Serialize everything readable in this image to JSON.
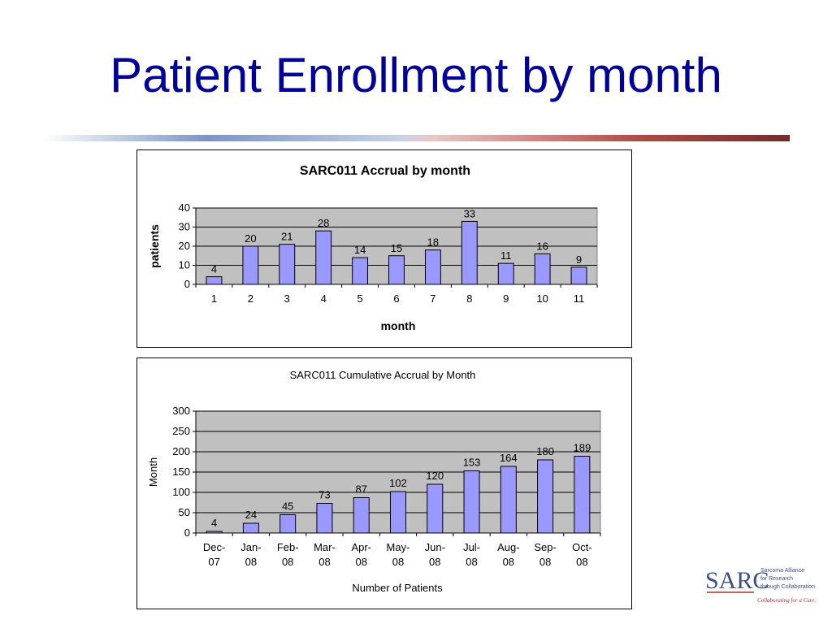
{
  "slide": {
    "title": "Patient Enrollment by month"
  },
  "colors": {
    "title": "#000099",
    "bar_fill": "#9999FF",
    "plot_bg": "#C0C0C0",
    "rule_blue": "#3A5D9B",
    "rule_red": "#A83A35"
  },
  "logo": {
    "name": "SARC",
    "tagline_1": "Sarcoma Alliance",
    "tagline_2": "for Research",
    "tagline_3": "through Collaboration",
    "slogan": "Collaborating for a Cure."
  },
  "chart_data": [
    {
      "type": "bar",
      "title": "SARC011 Accrual by month",
      "xlabel": "month",
      "ylabel": "patients",
      "categories": [
        "1",
        "2",
        "3",
        "4",
        "5",
        "6",
        "7",
        "8",
        "9",
        "10",
        "11"
      ],
      "values": [
        4,
        20,
        21,
        28,
        14,
        15,
        18,
        33,
        11,
        16,
        9
      ],
      "ylim": [
        0,
        40
      ],
      "yticks": [
        0,
        10,
        20,
        30,
        40
      ],
      "grid": true,
      "data_labels": true
    },
    {
      "type": "bar",
      "title": "SARC011 Cumulative Accrual by Month",
      "xlabel": "Number of Patients",
      "ylabel": "Month",
      "categories": [
        [
          "Dec-",
          "07"
        ],
        [
          "Jan-",
          "08"
        ],
        [
          "Feb-",
          "08"
        ],
        [
          "Mar-",
          "08"
        ],
        [
          "Apr-",
          "08"
        ],
        [
          "May-",
          "08"
        ],
        [
          "Jun-",
          "08"
        ],
        [
          "Jul-",
          "08"
        ],
        [
          "Aug-",
          "08"
        ],
        [
          "Sep-",
          "08"
        ],
        [
          "Oct-",
          "08"
        ]
      ],
      "values": [
        4,
        24,
        45,
        73,
        87,
        102,
        120,
        153,
        164,
        180,
        189
      ],
      "ylim": [
        0,
        300
      ],
      "yticks": [
        0,
        50,
        100,
        150,
        200,
        250,
        300
      ],
      "grid": true,
      "data_labels": true
    }
  ]
}
